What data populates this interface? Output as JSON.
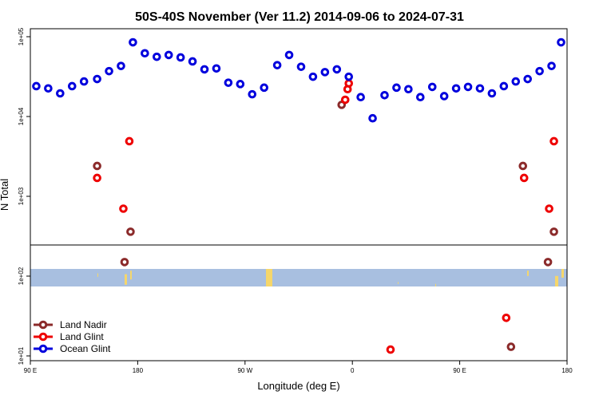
{
  "chart_data": {
    "type": "scatter",
    "title": "50S-40S November (Ver 11.2)   2014-09-06 to 2024-07-31",
    "xlabel": "Longitude (deg E)",
    "ylabel": "N Total",
    "x_ticks": [
      {
        "value": 90,
        "label": "90 E"
      },
      {
        "value": 180,
        "label": "180"
      },
      {
        "value": 270,
        "label": "90 W"
      },
      {
        "value": 360,
        "label": "0"
      },
      {
        "value": 450,
        "label": "90 E"
      },
      {
        "value": 540,
        "label": "180"
      }
    ],
    "y_ticks": [
      {
        "value": 10,
        "label": "1e+01"
      },
      {
        "value": 100,
        "label": "1e+02"
      },
      {
        "value": 1000,
        "label": "1e+03"
      },
      {
        "value": 10000,
        "label": "1e+04"
      },
      {
        "value": 100000,
        "label": "1e+05"
      }
    ],
    "xlim": [
      90,
      540
    ],
    "ylim": [
      10,
      100000
    ],
    "y_scale": "log",
    "grid": false,
    "legend_position": "bottom-left",
    "series": [
      {
        "name": "Land Nadir",
        "color": "#8B2A2A",
        "points": [
          [
            146,
            2400
          ],
          [
            169,
            150
          ],
          [
            174,
            360
          ],
          [
            351,
            14000
          ],
          [
            503,
            2400
          ],
          [
            524,
            150
          ],
          [
            529,
            360
          ],
          [
            493,
            13
          ]
        ]
      },
      {
        "name": "Land Glint",
        "color": "#EE0000",
        "points": [
          [
            146,
            1700
          ],
          [
            168,
            700
          ],
          [
            173,
            4900
          ],
          [
            354,
            16200
          ],
          [
            356,
            22000
          ],
          [
            357,
            26000
          ],
          [
            392,
            12
          ],
          [
            489,
            30
          ],
          [
            504,
            1700
          ],
          [
            525,
            700
          ],
          [
            529,
            4900
          ]
        ]
      },
      {
        "name": "Ocean Glint",
        "color": "#0000DD",
        "points": [
          [
            95,
            24000
          ],
          [
            105,
            22500
          ],
          [
            115,
            19500
          ],
          [
            125,
            24000
          ],
          [
            135,
            27500
          ],
          [
            146,
            29500
          ],
          [
            156,
            37000
          ],
          [
            166,
            43000
          ],
          [
            176,
            85000
          ],
          [
            186,
            62000
          ],
          [
            196,
            56000
          ],
          [
            206,
            59000
          ],
          [
            216,
            55000
          ],
          [
            226,
            49000
          ],
          [
            236,
            39000
          ],
          [
            246,
            40000
          ],
          [
            256,
            26500
          ],
          [
            266,
            25500
          ],
          [
            276,
            19000
          ],
          [
            286,
            23000
          ],
          [
            297,
            44000
          ],
          [
            307,
            59000
          ],
          [
            317,
            42000
          ],
          [
            327,
            31500
          ],
          [
            337,
            36000
          ],
          [
            347,
            39000
          ],
          [
            357,
            31500
          ],
          [
            367,
            17500
          ],
          [
            377,
            9500
          ],
          [
            387,
            18500
          ],
          [
            397,
            23000
          ],
          [
            407,
            22000
          ],
          [
            417,
            17500
          ],
          [
            427,
            23500
          ],
          [
            437,
            18000
          ],
          [
            447,
            22500
          ],
          [
            457,
            23500
          ],
          [
            467,
            22500
          ],
          [
            477,
            19500
          ],
          [
            487,
            24000
          ],
          [
            497,
            27500
          ],
          [
            507,
            29500
          ],
          [
            517,
            37000
          ],
          [
            527,
            43000
          ],
          [
            535,
            85000
          ]
        ]
      }
    ]
  }
}
